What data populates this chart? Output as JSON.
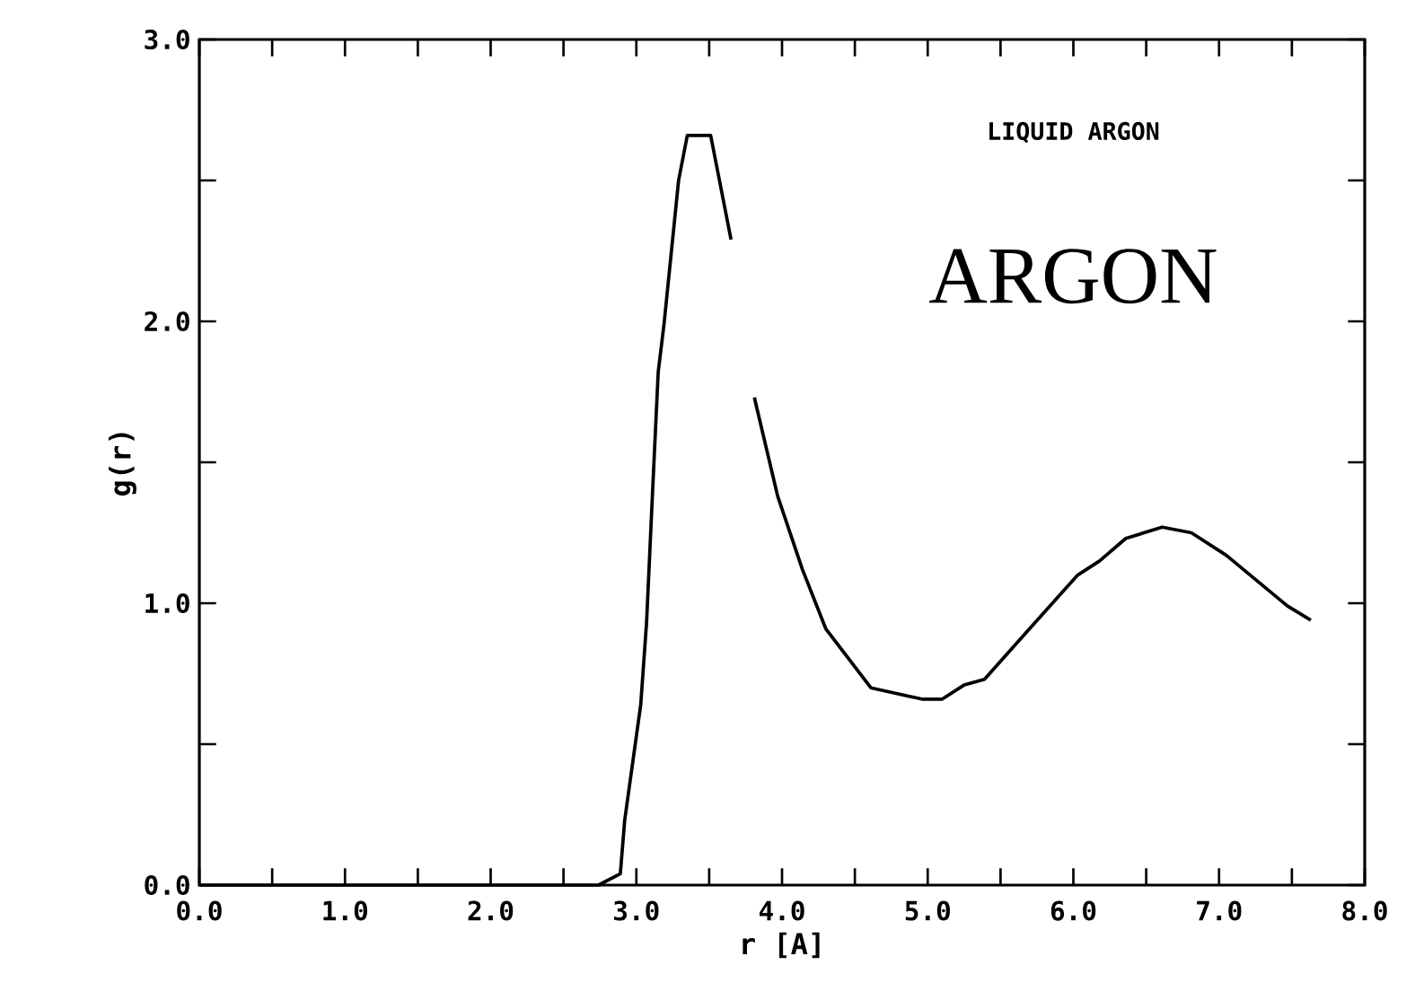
{
  "chart_data": {
    "type": "line",
    "xlabel": "r [A]",
    "ylabel": "g(r)",
    "annotations": [
      "LIQUID ARGON",
      "ARGON"
    ],
    "xlim": [
      0,
      8
    ],
    "ylim": [
      0,
      3
    ],
    "xticks": [
      {
        "value": 0,
        "label": "0.0"
      },
      {
        "value": 0.5,
        "label": null
      },
      {
        "value": 1,
        "label": "1.0"
      },
      {
        "value": 1.5,
        "label": null
      },
      {
        "value": 2,
        "label": "2.0"
      },
      {
        "value": 2.5,
        "label": null
      },
      {
        "value": 3,
        "label": "3.0"
      },
      {
        "value": 3.5,
        "label": null
      },
      {
        "value": 4,
        "label": "4.0"
      },
      {
        "value": 4.5,
        "label": null
      },
      {
        "value": 5,
        "label": "5.0"
      },
      {
        "value": 5.5,
        "label": null
      },
      {
        "value": 6,
        "label": "6.0"
      },
      {
        "value": 6.5,
        "label": null
      },
      {
        "value": 7,
        "label": "7.0"
      },
      {
        "value": 7.5,
        "label": null
      },
      {
        "value": 8,
        "label": "8.0"
      }
    ],
    "yticks": [
      {
        "value": 0,
        "label": "0.0"
      },
      {
        "value": 0.5,
        "label": null
      },
      {
        "value": 1,
        "label": "1.0"
      },
      {
        "value": 1.5,
        "label": null
      },
      {
        "value": 2,
        "label": "2.0"
      },
      {
        "value": 2.5,
        "label": null
      },
      {
        "value": 3,
        "label": "3.0"
      }
    ],
    "x": [
      0,
      2.74,
      2.89,
      2.92,
      3.03,
      3.07,
      3.11,
      3.15,
      3.19,
      3.29,
      3.35,
      3.51,
      3.65,
      3.73,
      3.81,
      3.97,
      4.14,
      4.3,
      4.61,
      4.96,
      5.1,
      5.25,
      5.39,
      5.7,
      6.03,
      6.18,
      6.36,
      6.61,
      6.81,
      7.05,
      7.47,
      7.63
    ],
    "series": [
      {
        "color": "#000000",
        "values": [
          0,
          0,
          0.04,
          0.23,
          0.64,
          0.93,
          1.38,
          1.82,
          1.99,
          2.5,
          2.66,
          2.66,
          2.29,
          null,
          1.73,
          1.38,
          1.12,
          0.91,
          0.7,
          0.66,
          0.66,
          0.71,
          0.73,
          0.91,
          1.1,
          1.15,
          1.23,
          1.27,
          1.25,
          1.17,
          0.99,
          0.94
        ]
      }
    ],
    "grid": false,
    "marker": "none",
    "line_style": "solid"
  }
}
